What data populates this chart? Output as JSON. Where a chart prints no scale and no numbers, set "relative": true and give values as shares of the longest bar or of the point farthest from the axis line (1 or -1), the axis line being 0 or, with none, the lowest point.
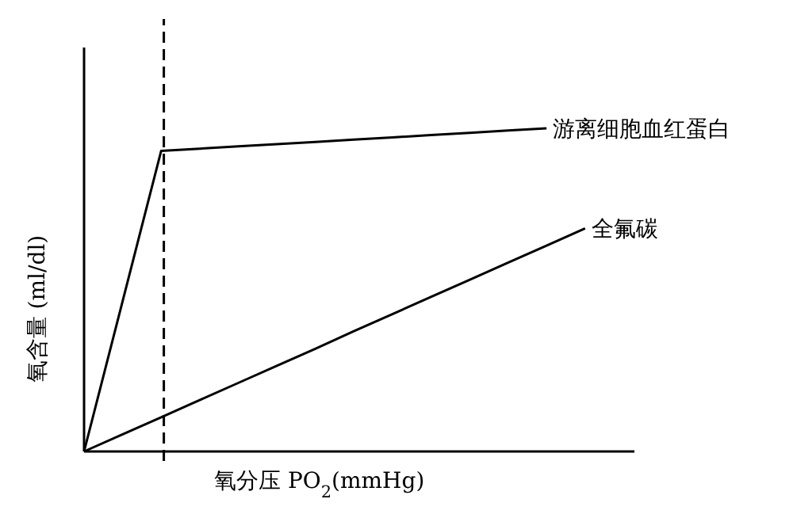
{
  "chart_data": {
    "type": "line",
    "relative": true,
    "xlabel": "氧分压 PO$_{2}$(mmHg)",
    "ylabel": "氧含量 (ml/dl)",
    "marker": "none",
    "line_style": "solid",
    "categories": [
      null,
      null,
      null,
      null,
      null,
      null,
      null,
      null,
      null,
      null,
      null,
      null,
      null,
      null
    ],
    "series": [
      {
        "name": "游离细胞血红蛋白",
        "color": "#000000",
        "values": [
          0,
          0.465,
          0.93,
          0.937,
          0.944,
          0.951,
          0.958,
          0.965,
          0.972,
          0.979,
          0.986,
          0.993,
          1,
          null
        ]
      },
      {
        "name": "全氟碳",
        "color": "#000000",
        "values": [
          0,
          0.053,
          0.106,
          0.159,
          0.212,
          0.265,
          0.318,
          0.372,
          0.425,
          0.478,
          0.531,
          0.584,
          0.637,
          0.69
        ]
      }
    ]
  }
}
